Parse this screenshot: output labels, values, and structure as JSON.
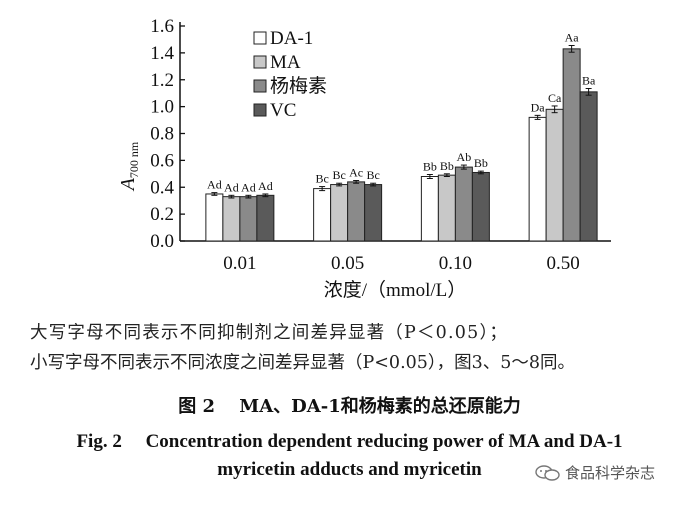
{
  "chart_data": {
    "type": "bar",
    "categories": [
      "0.01",
      "0.05",
      "0.10",
      "0.50"
    ],
    "xlabel": "浓度/（mmol/L）",
    "ylabel_main": "A",
    "ylabel_sub": "700 nm",
    "ylim": [
      0,
      1.6
    ],
    "yticks": [
      "0.0",
      "0.2",
      "0.4",
      "0.6",
      "0.8",
      "1.0",
      "1.2",
      "1.4",
      "1.6"
    ],
    "grid": false,
    "legend_position": "top-left",
    "series": [
      {
        "name": "DA-1",
        "color": "#ffffff",
        "values": [
          0.35,
          0.39,
          0.48,
          0.92
        ],
        "errors": [
          0.01,
          0.015,
          0.015,
          0.015
        ],
        "letters": [
          "Ad",
          "Bc",
          "Bb",
          "Da"
        ]
      },
      {
        "name": "MA",
        "color": "#c8c8c8",
        "values": [
          0.33,
          0.42,
          0.49,
          0.98
        ],
        "errors": [
          0.01,
          0.01,
          0.01,
          0.025
        ],
        "letters": [
          "Ad",
          "Bc",
          "Bb",
          "Ca"
        ]
      },
      {
        "name": "杨梅素",
        "color": "#8a8a8a",
        "values": [
          0.33,
          0.44,
          0.55,
          1.43
        ],
        "errors": [
          0.01,
          0.01,
          0.015,
          0.025
        ],
        "letters": [
          "Ad",
          "Ac",
          "Ab",
          "Aa"
        ]
      },
      {
        "name": "VC",
        "color": "#5a5a5a",
        "values": [
          0.34,
          0.42,
          0.51,
          1.11
        ],
        "errors": [
          0.01,
          0.01,
          0.01,
          0.025
        ],
        "letters": [
          "Ad",
          "Bc",
          "Bb",
          "Ba"
        ]
      }
    ]
  },
  "notes": {
    "line1": "大写字母不同表示不同抑制剂之间差异显著（P＜0.05）；",
    "line2": "小写字母不同表示不同浓度之间差异显著（P<0.05），图3、5～8同。"
  },
  "caption": {
    "cn": "图 2　 MA、DA-1和杨梅素的总还原能力",
    "en_line1": "Fig. 2　  Concentration dependent reducing power of MA and DA-1",
    "en_line2": "myricetin adducts and myricetin"
  },
  "watermark": {
    "text": "食品科学杂志",
    "icon": "wechat-icon"
  }
}
